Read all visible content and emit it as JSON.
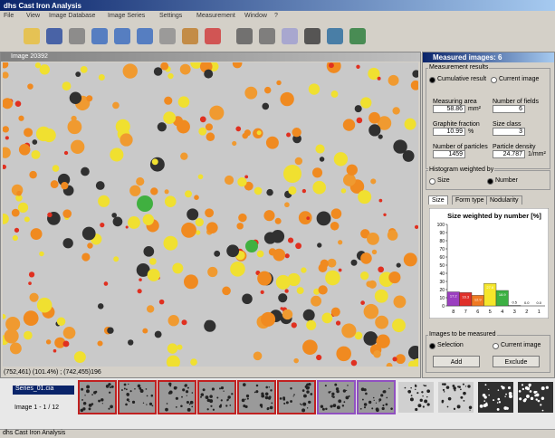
{
  "window": {
    "title": "dhs Cast Iron Analysis"
  },
  "menu": [
    "File",
    "View",
    "Image Database",
    "Image Series",
    "Settings",
    "Measurement",
    "Window",
    "?"
  ],
  "image_window": {
    "title": "Image 20392",
    "status": "(752,461) (101.4%) ; (742,455)196"
  },
  "panel": {
    "title": "Measured images: 6",
    "results_group": "Measurement results",
    "result_options": [
      "Cumulative result",
      "Current image"
    ],
    "result_selected": 0,
    "fields": [
      {
        "label": "Measuring area",
        "value": "58.86",
        "unit": "mm²"
      },
      {
        "label": "Number of fields",
        "value": "6"
      },
      {
        "label": "Graphite fraction",
        "value": "10.99",
        "unit": "%"
      },
      {
        "label": "Size class",
        "value": "3"
      },
      {
        "label": "Number of particles",
        "value": "1459"
      },
      {
        "label": "Particle density",
        "value": "24.787",
        "unit": "1/mm²"
      }
    ],
    "histogram_group": "Histogram weighted by",
    "weight_options": [
      "Size",
      "Number"
    ],
    "weight_selected": 1,
    "tabs": [
      "Size",
      "Form type",
      "Nodularity"
    ],
    "measure_group": "Images to be measured",
    "measure_options": [
      "Selection",
      "Current image"
    ],
    "measure_selected": 0,
    "buttons": [
      "Add",
      "Exclude"
    ]
  },
  "chart_data": {
    "type": "bar",
    "title": "Size weighted by number [%]",
    "categories": [
      "8",
      "7",
      "6",
      "5",
      "4",
      "3",
      "2",
      "1"
    ],
    "values": [
      17.2,
      16.3,
      12.9,
      27.6,
      18.9,
      0.5,
      0,
      0
    ],
    "value_labels": [
      "17.2",
      "16.3",
      "12.9",
      "27.6",
      "18.9",
      "0.5",
      "0.0",
      "0.0"
    ],
    "colors": [
      "#9b3fc0",
      "#e0302a",
      "#f07a22",
      "#f5e62a",
      "#3cb043",
      "#999999",
      "#999999",
      "#999999"
    ],
    "ylim": [
      0,
      100
    ],
    "yticks": [
      0,
      10,
      20,
      30,
      40,
      50,
      60,
      70,
      80,
      90,
      100
    ]
  },
  "series_panel": {
    "file": "Series_01.cia",
    "range": "Image 1 - 1 / 12"
  },
  "statusbar": {
    "text": "dhs Cast Iron Analysis"
  }
}
